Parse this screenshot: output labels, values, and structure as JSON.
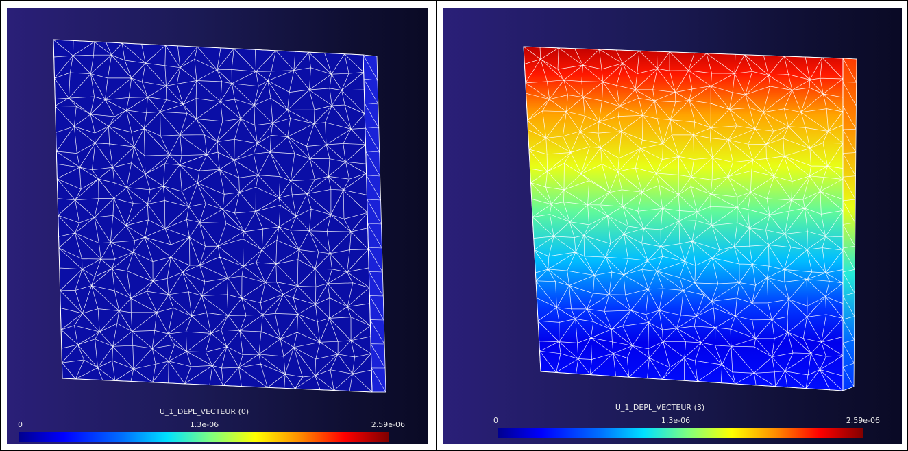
{
  "panels": [
    {
      "id": "left",
      "field_title": "U_1_DEPL_VECTEUR (0)",
      "scale_min": "0",
      "scale_mid": "1.3e-06",
      "scale_max": "2.59e-06",
      "colormode": "uniform-blue",
      "face_color": "#0a0ea6",
      "side_color": "#1a22d8"
    },
    {
      "id": "right",
      "field_title": "U_1_DEPL_VECTEUR (3)",
      "scale_min": "0",
      "scale_mid": "1.3e-06",
      "scale_max": "2.59e-06",
      "colormode": "gradient",
      "face_color": "#ff3000",
      "side_color": "#ff6000"
    }
  ],
  "background_colors": [
    "#2a1f78",
    "#0a0a25"
  ],
  "mesh_line_color": "#ffffff"
}
